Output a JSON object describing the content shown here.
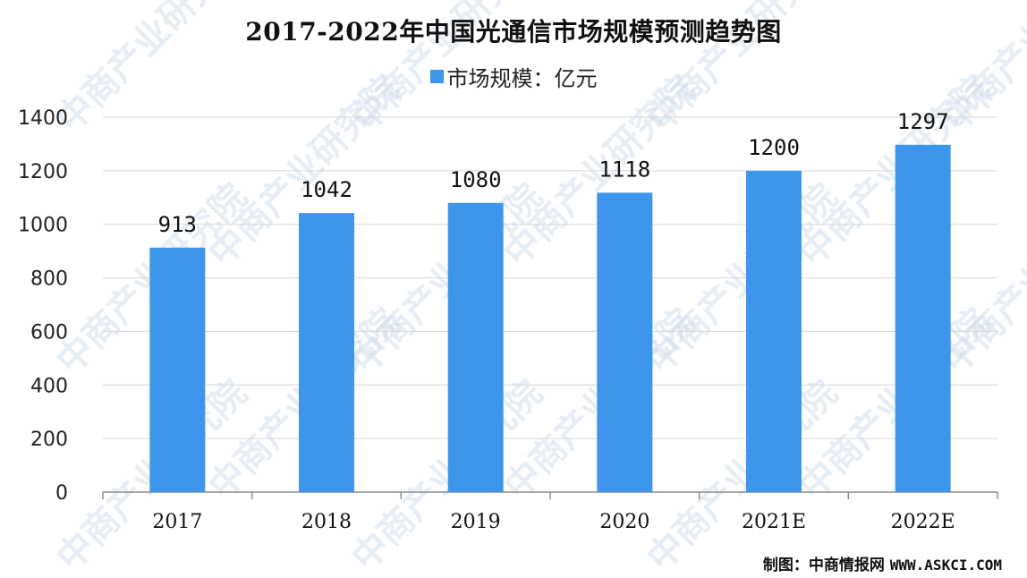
{
  "chart_data": {
    "type": "bar",
    "title": "2017-2022年中国光通信市场规模预测趋势图",
    "categories": [
      "2017",
      "2018",
      "2019",
      "2020",
      "2021E",
      "2022E"
    ],
    "series": [
      {
        "name": "市场规模：亿元",
        "values": [
          913,
          1042,
          1080,
          1118,
          1200,
          1297
        ],
        "color": "#3d96ec"
      }
    ],
    "data_labels": [
      "913",
      "1042",
      "1080",
      "1118",
      "1200",
      "1297"
    ],
    "y_ticks": [
      0,
      200,
      400,
      600,
      800,
      1000,
      1200,
      1400
    ],
    "ylim": [
      0,
      1400
    ],
    "xlabel": "",
    "ylabel": "",
    "grid": true,
    "legend_position": "top-center"
  },
  "source": {
    "prefix": "制图：中商情报网",
    "site": "WWW.ASKCI.COM"
  },
  "watermark": "中商产业研究院"
}
